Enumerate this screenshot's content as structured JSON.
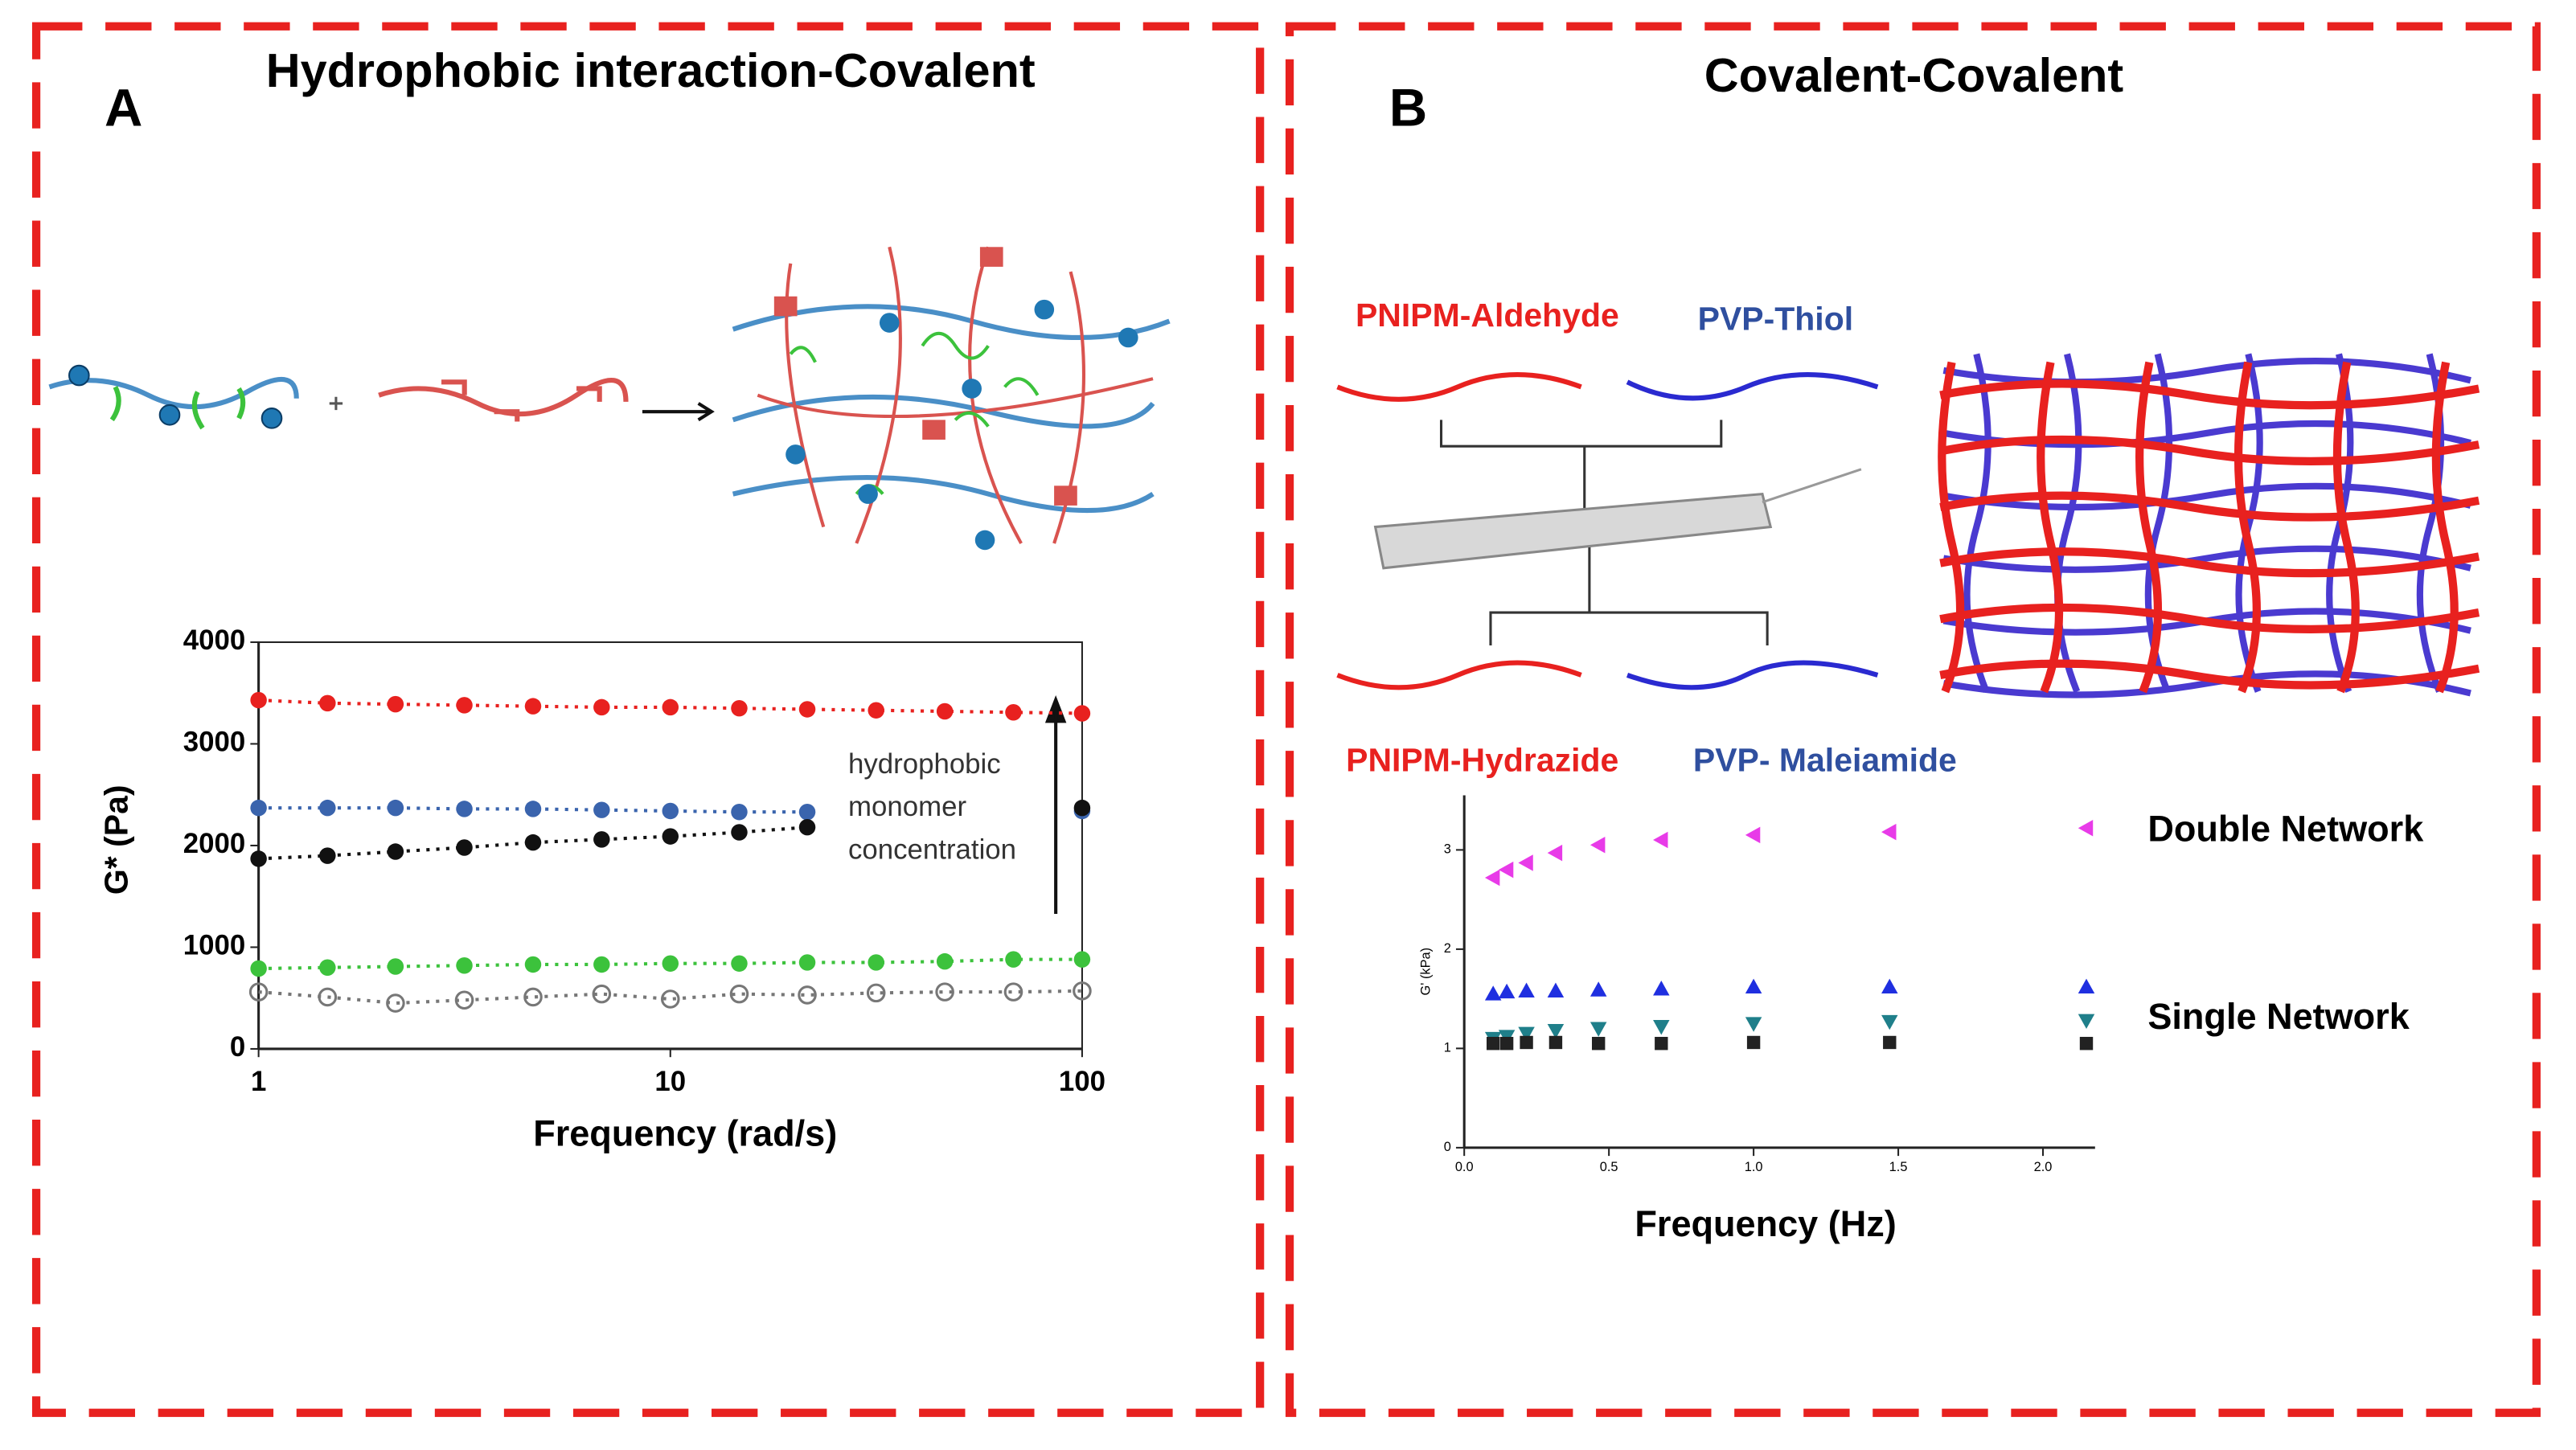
{
  "chart_data": [
    {
      "type": "scatter",
      "panel_label": "A",
      "title": "Hydrophobic interaction-Covalent",
      "x_label": "Frequency (rad/s)",
      "y_label": "G* (Pa)",
      "annotation": [
        "hydrophobic",
        "monomer",
        "concentration"
      ],
      "xscale": "log",
      "xlim": [
        1,
        100
      ],
      "xticks": [
        1,
        10,
        100
      ],
      "ylim": [
        0,
        4000
      ],
      "yticks": [
        0,
        1000,
        2000,
        3000,
        4000
      ],
      "line_style": "dotted",
      "x": [
        1,
        1.47,
        2.15,
        3.16,
        4.64,
        6.81,
        10,
        14.7,
        21.5,
        31.6,
        46.4,
        68.1,
        100
      ],
      "series": [
        {
          "color": "#e8211f",
          "marker": "circle",
          "values": [
            3430,
            3400,
            3390,
            3380,
            3370,
            3360,
            3360,
            3350,
            3340,
            3330,
            3320,
            3310,
            3300
          ]
        },
        {
          "color": "#3a64ad",
          "marker": "circle",
          "values": [
            2370,
            2370,
            2370,
            2360,
            2360,
            2350,
            2340,
            2330,
            2330,
            null,
            null,
            null,
            2340
          ]
        },
        {
          "color": "#111111",
          "marker": "circle",
          "values": [
            1870,
            1900,
            1940,
            1980,
            2030,
            2060,
            2090,
            2130,
            2180,
            null,
            null,
            null,
            2370
          ]
        },
        {
          "color": "#3cc23c",
          "marker": "circle",
          "values": [
            790,
            800,
            810,
            820,
            830,
            830,
            840,
            840,
            850,
            850,
            860,
            880,
            880
          ]
        },
        {
          "color": "#777777",
          "marker": "open-circle",
          "values": [
            560,
            510,
            450,
            480,
            510,
            540,
            490,
            540,
            530,
            550,
            560,
            560,
            570
          ]
        }
      ]
    },
    {
      "type": "scatter",
      "panel_label": "B",
      "title": "Covalent-Covalent",
      "x_label": "Frequency (Hz)",
      "y_label": "G' (kPa)",
      "diagram_labels": {
        "top_left": "PNIPM-Aldehyde",
        "top_right": "PVP-Thiol",
        "bottom_left": "PNIPM-Hydrazide",
        "bottom_right": "PVP- Maleiamide"
      },
      "annotations": [
        "Double Network",
        "Single Network"
      ],
      "xlim": [
        0,
        2.18
      ],
      "xticks": [
        {
          "value": 0,
          "label": "0.0"
        },
        0.5,
        {
          "value": 1,
          "label": "1.0"
        },
        1.5,
        {
          "value": 2,
          "label": "2.0"
        }
      ],
      "ylim": [
        0,
        3.55
      ],
      "yticks": [
        0,
        1,
        2,
        3
      ],
      "x": [
        0.1,
        0.147,
        0.215,
        0.316,
        0.464,
        0.681,
        1.0,
        1.47,
        2.15
      ],
      "series": [
        {
          "color": "#e83be8",
          "marker": "triangle-left",
          "values": [
            2.72,
            2.8,
            2.87,
            2.97,
            3.05,
            3.1,
            3.15,
            3.18,
            3.22
          ]
        },
        {
          "color": "#1f2fe0",
          "marker": "triangle-up",
          "values": [
            1.55,
            1.57,
            1.58,
            1.58,
            1.59,
            1.6,
            1.62,
            1.62,
            1.62
          ]
        },
        {
          "color": "#1f7f8a",
          "marker": "triangle-down",
          "values": [
            1.1,
            1.12,
            1.15,
            1.18,
            1.2,
            1.22,
            1.25,
            1.27,
            1.28
          ]
        },
        {
          "color": "#222222",
          "marker": "square",
          "values": [
            1.05,
            1.05,
            1.06,
            1.06,
            1.05,
            1.05,
            1.06,
            1.06,
            1.05
          ]
        }
      ]
    }
  ]
}
